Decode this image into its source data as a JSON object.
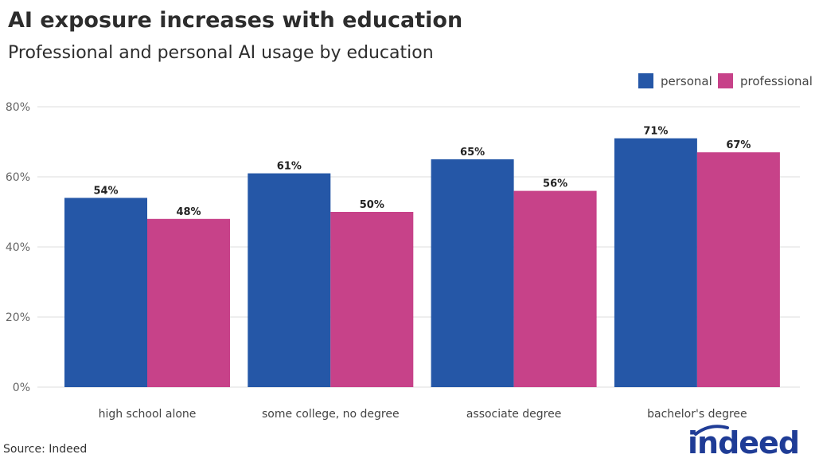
{
  "chart_data": {
    "type": "bar",
    "title": "AI exposure increases with education",
    "subtitle": "Professional and personal AI usage by education",
    "categories": [
      "high school alone",
      "some college, no degree",
      "associate degree",
      "bachelor's degree"
    ],
    "series": [
      {
        "name": "personal",
        "color": "#2557a7",
        "values": [
          54,
          61,
          65,
          71
        ]
      },
      {
        "name": "professional",
        "color": "#c74289",
        "values": [
          48,
          50,
          56,
          67
        ]
      }
    ],
    "ylim": [
      0,
      80
    ],
    "yticks": [
      0,
      20,
      40,
      60,
      80
    ],
    "ytick_format": "%",
    "grid": true,
    "legend": "top-right",
    "source": "Source: Indeed"
  },
  "logo": {
    "text": "indeed",
    "color": "#1f3c96"
  }
}
